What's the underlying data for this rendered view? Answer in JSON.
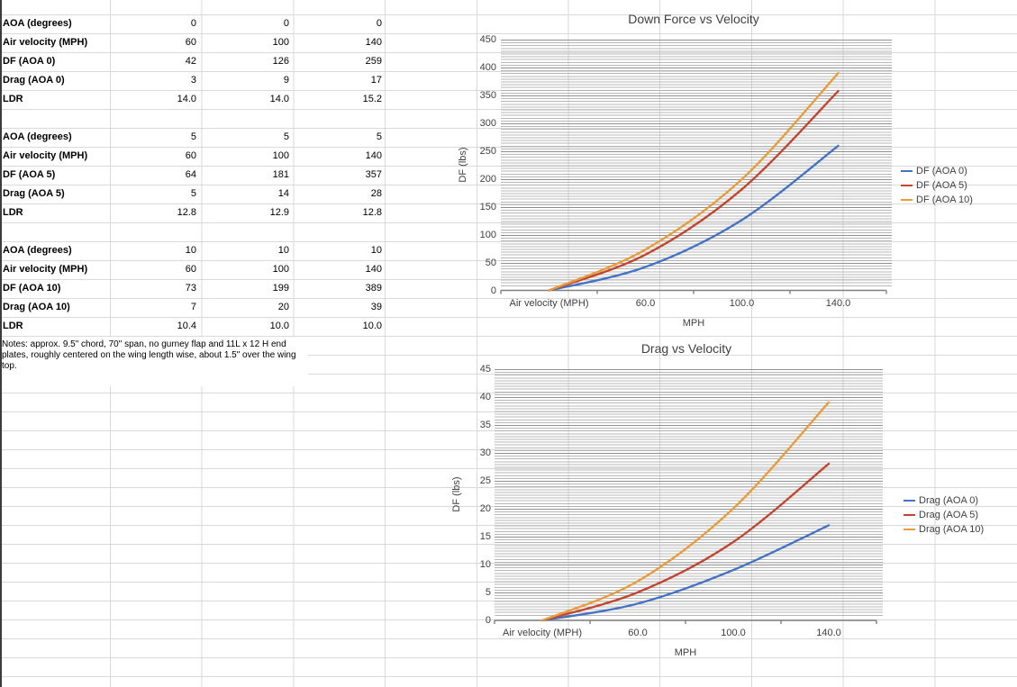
{
  "sheet": {
    "table_blocks": [
      {
        "rows": [
          {
            "label": "AOA (degrees)",
            "values": [
              "0",
              "0",
              "0"
            ]
          },
          {
            "label": "Air velocity (MPH)",
            "values": [
              "60",
              "100",
              "140"
            ]
          },
          {
            "label": "DF (AOA 0)",
            "values": [
              "42",
              "126",
              "259"
            ]
          },
          {
            "label": "Drag (AOA 0)",
            "values": [
              "3",
              "9",
              "17"
            ]
          },
          {
            "label": "LDR",
            "values": [
              "14.0",
              "14.0",
              "15.2"
            ]
          }
        ]
      },
      {
        "rows": [
          {
            "label": "AOA (degrees)",
            "values": [
              "5",
              "5",
              "5"
            ]
          },
          {
            "label": "Air velocity (MPH)",
            "values": [
              "60",
              "100",
              "140"
            ]
          },
          {
            "label": "DF (AOA 5)",
            "values": [
              "64",
              "181",
              "357"
            ]
          },
          {
            "label": "Drag (AOA 5)",
            "values": [
              "5",
              "14",
              "28"
            ]
          },
          {
            "label": "LDR",
            "values": [
              "12.8",
              "12.9",
              "12.8"
            ]
          }
        ]
      },
      {
        "rows": [
          {
            "label": "AOA (degrees)",
            "values": [
              "10",
              "10",
              "10"
            ]
          },
          {
            "label": "Air velocity (MPH)",
            "values": [
              "60",
              "100",
              "140"
            ]
          },
          {
            "label": "DF (AOA 10)",
            "values": [
              "73",
              "199",
              "389"
            ]
          },
          {
            "label": "Drag (AOA 10)",
            "values": [
              "7",
              "20",
              "39"
            ]
          },
          {
            "label": "LDR",
            "values": [
              "10.4",
              "10.0",
              "10.0"
            ]
          }
        ]
      }
    ],
    "notes": "Notes: approx. 9.5\" chord, 70\" span, no gurney flap and 11L x 12 H end plates, roughly centered on the wing length wise, about 1.5\" over the wing top."
  },
  "chart_data": [
    {
      "type": "line",
      "title": "Down Force vs Velocity",
      "categories": [
        "Air velocity (MPH)",
        "60.0",
        "100.0",
        "140.0"
      ],
      "series": [
        {
          "name": "DF (AOA 0)",
          "color": "#4472C4",
          "values": [
            0,
            42,
            126,
            259
          ]
        },
        {
          "name": "DF (AOA 5)",
          "color": "#C2452F",
          "values": [
            0,
            64,
            181,
            357
          ]
        },
        {
          "name": "DF (AOA 10)",
          "color": "#E89C3C",
          "values": [
            0,
            73,
            199,
            389
          ]
        }
      ],
      "xlabel": "MPH",
      "ylabel": "DF (lbs)",
      "ylim": [
        0,
        450
      ],
      "ytick": 50,
      "grid": "horizontal-major-and-minor",
      "legend_position": "right",
      "line_smooth": true
    },
    {
      "type": "line",
      "title": "Drag vs Velocity",
      "categories": [
        "Air velocity (MPH)",
        "60.0",
        "100.0",
        "140.0"
      ],
      "series": [
        {
          "name": "Drag (AOA 0)",
          "color": "#4472C4",
          "values": [
            0,
            3,
            9,
            17
          ]
        },
        {
          "name": "Drag (AOA 5)",
          "color": "#C2452F",
          "values": [
            0,
            5,
            14,
            28
          ]
        },
        {
          "name": "Drag (AOA 10)",
          "color": "#E89C3C",
          "values": [
            0,
            7,
            20,
            39
          ]
        }
      ],
      "xlabel": "MPH",
      "ylabel": "DF (lbs)",
      "ylim": [
        0,
        45
      ],
      "ytick": 5,
      "grid": "horizontal-major-and-minor",
      "legend_position": "right",
      "line_smooth": true
    }
  ]
}
